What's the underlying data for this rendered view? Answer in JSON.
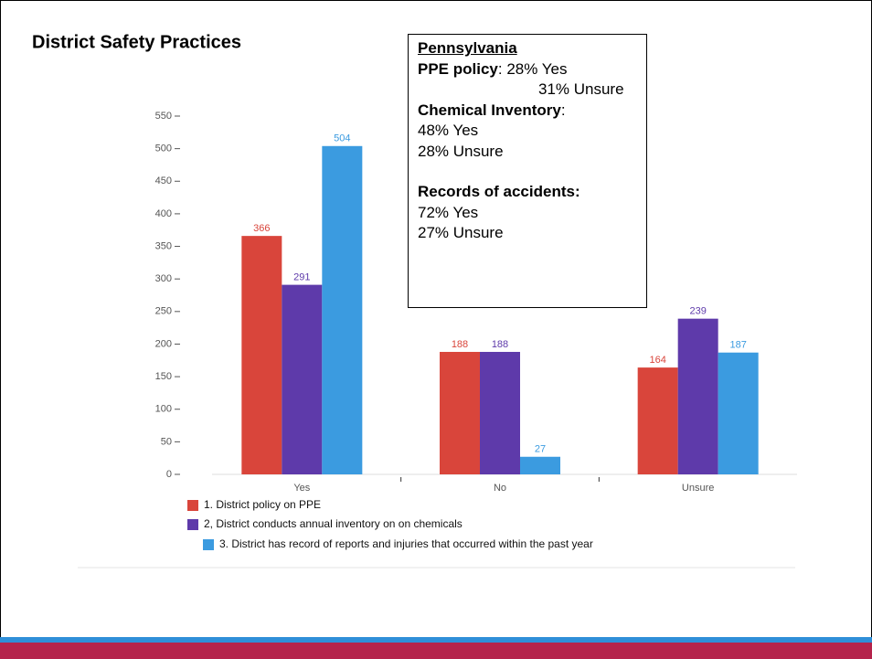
{
  "chart_data": {
    "type": "bar",
    "title": "District Safety Practices",
    "categories": [
      "Yes",
      "No",
      "Unsure"
    ],
    "series": [
      {
        "name": "1. District policy on PPE",
        "color": "#d9453b",
        "values": [
          366,
          188,
          164
        ]
      },
      {
        "name": "2, District conducts annual inventory on on chemicals",
        "color": "#5e3aaa",
        "values": [
          291,
          188,
          239
        ]
      },
      {
        "name": "3. District has record of reports and injuries that occurred within the past year",
        "color": "#3b9be0",
        "values": [
          504,
          27,
          187
        ]
      }
    ],
    "ylim": [
      0,
      550
    ],
    "yticks": [
      0,
      50,
      100,
      150,
      200,
      250,
      300,
      350,
      400,
      450,
      500,
      550
    ],
    "grid": false
  },
  "info_box": {
    "heading": "Pennsylvania",
    "lines": [
      "PPE policy",
      ": 28% Yes",
      "31% Unsure",
      "Chemical Inventory",
      ":",
      "48% Yes",
      "28% Unsure",
      "Records of accidents:",
      "72% Yes",
      "27% Unsure"
    ]
  }
}
